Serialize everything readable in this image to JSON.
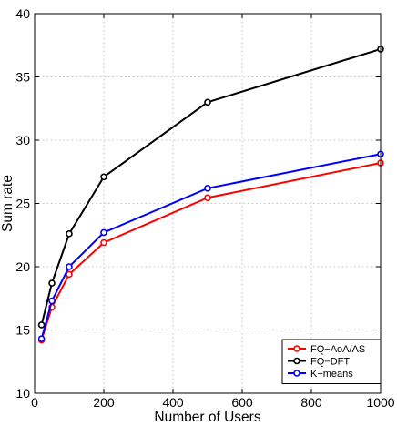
{
  "chart_data": {
    "type": "line",
    "title": "",
    "xlabel": "Number of Users",
    "ylabel": "Sum rate",
    "xlim": [
      0,
      1000
    ],
    "ylim": [
      10,
      40
    ],
    "xticks": [
      0,
      200,
      400,
      600,
      800,
      1000
    ],
    "yticks": [
      10,
      15,
      20,
      25,
      30,
      35,
      40
    ],
    "grid": true,
    "legend_position": "bottom-right",
    "x": [
      20,
      50,
      100,
      200,
      500,
      1000
    ],
    "series": [
      {
        "name": "FQ−AoA/AS",
        "color": "#ff0000",
        "values": [
          14.2,
          16.8,
          19.4,
          21.9,
          25.45,
          28.2
        ]
      },
      {
        "name": "FQ−DFT",
        "color": "#000000",
        "values": [
          15.4,
          18.7,
          22.6,
          27.1,
          33.0,
          37.2
        ]
      },
      {
        "name": "K−means",
        "color": "#0000ff",
        "values": [
          14.3,
          17.3,
          20.0,
          22.7,
          26.2,
          28.9
        ]
      }
    ]
  }
}
